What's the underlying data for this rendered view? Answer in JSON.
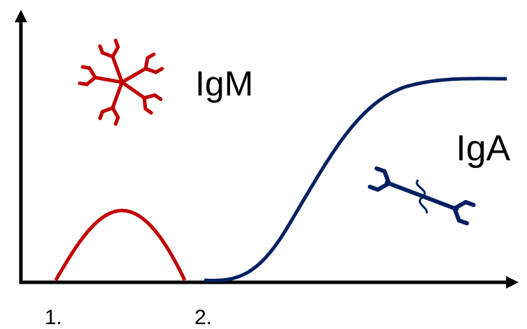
{
  "labels": {
    "igm": "IgM",
    "iga": "IgA"
  },
  "x_axis_labels": [
    "1.",
    "2."
  ]
}
